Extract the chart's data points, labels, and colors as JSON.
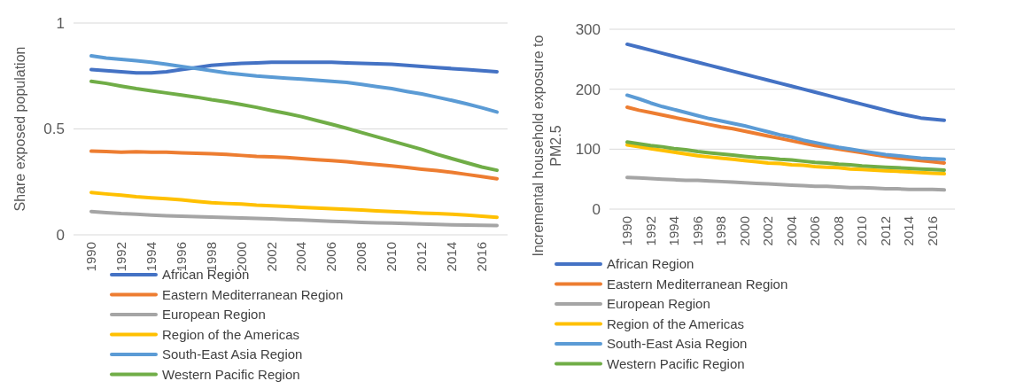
{
  "chart_data": [
    {
      "type": "line",
      "ylabel": "Share exposed population",
      "categories": [
        "1990",
        null,
        "1992",
        null,
        "1994",
        null,
        "1996",
        null,
        "1998",
        null,
        "2000",
        null,
        "2002",
        null,
        "2004",
        null,
        "2006",
        null,
        "2008",
        null,
        "2010",
        null,
        "2012",
        null,
        "2014",
        null,
        "2016",
        null
      ],
      "ylim": [
        0,
        1
      ],
      "yticks": [
        0,
        0.5,
        1
      ],
      "grid": "y",
      "legend": "bottom",
      "series": [
        {
          "name": "African Region",
          "color": "#4472c4",
          "values": [
            0.78,
            0.775,
            0.77,
            0.765,
            0.765,
            0.77,
            0.78,
            0.79,
            0.8,
            0.805,
            0.81,
            0.812,
            0.815,
            0.815,
            0.815,
            0.815,
            0.815,
            0.812,
            0.81,
            0.808,
            0.805,
            0.8,
            0.795,
            0.79,
            0.785,
            0.78,
            0.775,
            0.77
          ]
        },
        {
          "name": "Eastern Mediterranean Region",
          "color": "#ed7d31",
          "values": [
            0.395,
            0.393,
            0.39,
            0.392,
            0.39,
            0.39,
            0.387,
            0.385,
            0.383,
            0.38,
            0.375,
            0.37,
            0.368,
            0.365,
            0.36,
            0.355,
            0.35,
            0.345,
            0.338,
            0.332,
            0.325,
            0.318,
            0.31,
            0.303,
            0.295,
            0.285,
            0.275,
            0.265
          ]
        },
        {
          "name": "European Region",
          "color": "#a5a5a5",
          "values": [
            0.11,
            0.105,
            0.1,
            0.097,
            0.093,
            0.09,
            0.088,
            0.086,
            0.084,
            0.082,
            0.08,
            0.077,
            0.075,
            0.072,
            0.07,
            0.067,
            0.064,
            0.062,
            0.059,
            0.057,
            0.055,
            0.053,
            0.051,
            0.049,
            0.047,
            0.046,
            0.045,
            0.044
          ]
        },
        {
          "name": "Region of the Americas",
          "color": "#ffc000",
          "values": [
            0.2,
            0.193,
            0.187,
            0.18,
            0.175,
            0.17,
            0.165,
            0.158,
            0.152,
            0.148,
            0.145,
            0.14,
            0.137,
            0.134,
            0.13,
            0.127,
            0.123,
            0.12,
            0.117,
            0.113,
            0.11,
            0.107,
            0.103,
            0.1,
            0.097,
            0.093,
            0.088,
            0.083
          ]
        },
        {
          "name": "South-East Asia Region",
          "color": "#5b9bd5",
          "values": [
            0.845,
            0.835,
            0.828,
            0.822,
            0.815,
            0.805,
            0.795,
            0.785,
            0.775,
            0.765,
            0.757,
            0.75,
            0.745,
            0.74,
            0.735,
            0.73,
            0.725,
            0.72,
            0.71,
            0.7,
            0.69,
            0.677,
            0.665,
            0.65,
            0.635,
            0.618,
            0.6,
            0.58
          ]
        },
        {
          "name": "Western Pacific Region",
          "color": "#70ad47",
          "values": [
            0.725,
            0.715,
            0.702,
            0.69,
            0.68,
            0.67,
            0.66,
            0.65,
            0.638,
            0.628,
            0.615,
            0.602,
            0.587,
            0.573,
            0.558,
            0.54,
            0.522,
            0.503,
            0.483,
            0.463,
            0.443,
            0.423,
            0.403,
            0.38,
            0.36,
            0.34,
            0.32,
            0.305
          ]
        }
      ]
    },
    {
      "type": "line",
      "ylabel": "Incremental household exposure to PM2.5",
      "categories": [
        "1990",
        null,
        "1992",
        null,
        "1994",
        null,
        "1996",
        null,
        "1998",
        null,
        "2000",
        null,
        "2002",
        null,
        "2004",
        null,
        "2006",
        null,
        "2008",
        null,
        "2010",
        null,
        "2012",
        null,
        "2014",
        null,
        "2016",
        null
      ],
      "ylim": [
        0,
        300
      ],
      "yticks": [
        0,
        100,
        200,
        300
      ],
      "grid": "y",
      "legend": "bottom",
      "series": [
        {
          "name": "African Region",
          "color": "#4472c4",
          "values": [
            275,
            270,
            265,
            260,
            255,
            250,
            245,
            240,
            235,
            230,
            225,
            220,
            215,
            210,
            205,
            200,
            195,
            190,
            185,
            180,
            175,
            170,
            165,
            160,
            156,
            152,
            150,
            148
          ]
        },
        {
          "name": "Eastern Mediterranean Region",
          "color": "#ed7d31",
          "values": [
            170,
            165,
            161,
            157,
            153,
            149,
            145,
            141,
            137,
            134,
            130,
            126,
            122,
            118,
            114,
            110,
            106,
            103,
            100,
            97,
            94,
            91,
            88,
            85,
            83,
            81,
            79,
            77
          ]
        },
        {
          "name": "European Region",
          "color": "#a5a5a5",
          "values": [
            53,
            52,
            51,
            50,
            49,
            48,
            48,
            47,
            46,
            45,
            44,
            43,
            42,
            41,
            40,
            39,
            38,
            38,
            37,
            36,
            36,
            35,
            34,
            34,
            33,
            33,
            33,
            32
          ]
        },
        {
          "name": "Region of the Americas",
          "color": "#ffc000",
          "values": [
            107,
            104,
            101,
            98,
            95,
            92,
            89,
            87,
            85,
            83,
            81,
            79,
            77,
            76,
            74,
            73,
            71,
            70,
            69,
            67,
            66,
            65,
            64,
            63,
            62,
            61,
            60,
            59
          ]
        },
        {
          "name": "South-East Asia Region",
          "color": "#5b9bd5",
          "values": [
            190,
            184,
            177,
            171,
            166,
            161,
            156,
            151,
            147,
            143,
            139,
            134,
            129,
            124,
            120,
            115,
            111,
            107,
            103,
            100,
            97,
            94,
            91,
            89,
            87,
            85,
            84,
            83
          ]
        },
        {
          "name": "Western Pacific Region",
          "color": "#70ad47",
          "values": [
            112,
            109,
            106,
            104,
            101,
            99,
            96,
            94,
            92,
            90,
            88,
            86,
            85,
            83,
            82,
            80,
            78,
            77,
            75,
            74,
            72,
            71,
            70,
            69,
            68,
            67,
            66,
            65
          ]
        }
      ]
    }
  ]
}
